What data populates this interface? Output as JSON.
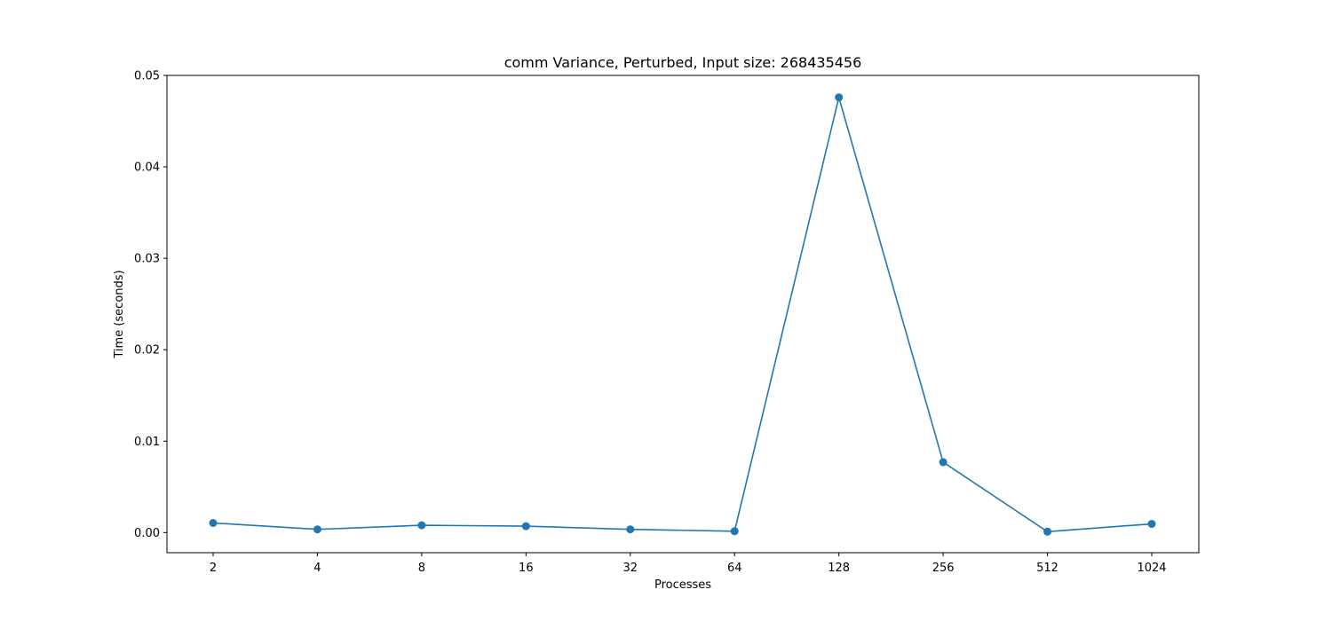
{
  "chart_data": {
    "type": "line",
    "title": "comm Variance, Perturbed, Input size: 268435456",
    "xlabel": "Processes",
    "ylabel": "Time (seconds)",
    "categories": [
      "2",
      "4",
      "8",
      "16",
      "32",
      "64",
      "128",
      "256",
      "512",
      "1024"
    ],
    "series": [
      {
        "values": [
          0.00105,
          0.00035,
          0.0008,
          0.0007,
          0.00035,
          0.00015,
          0.0476,
          0.0077,
          0.0001,
          0.00095
        ],
        "color": "#1f77b4"
      }
    ],
    "ylim": [
      -0.0022,
      0.05
    ],
    "yticks": [
      0.0,
      0.01,
      0.02,
      0.03,
      0.04,
      0.05
    ],
    "ytick_labels": [
      "0.00",
      "0.01",
      "0.02",
      "0.03",
      "0.04",
      "0.05"
    ],
    "grid": false,
    "marker": "circle"
  }
}
